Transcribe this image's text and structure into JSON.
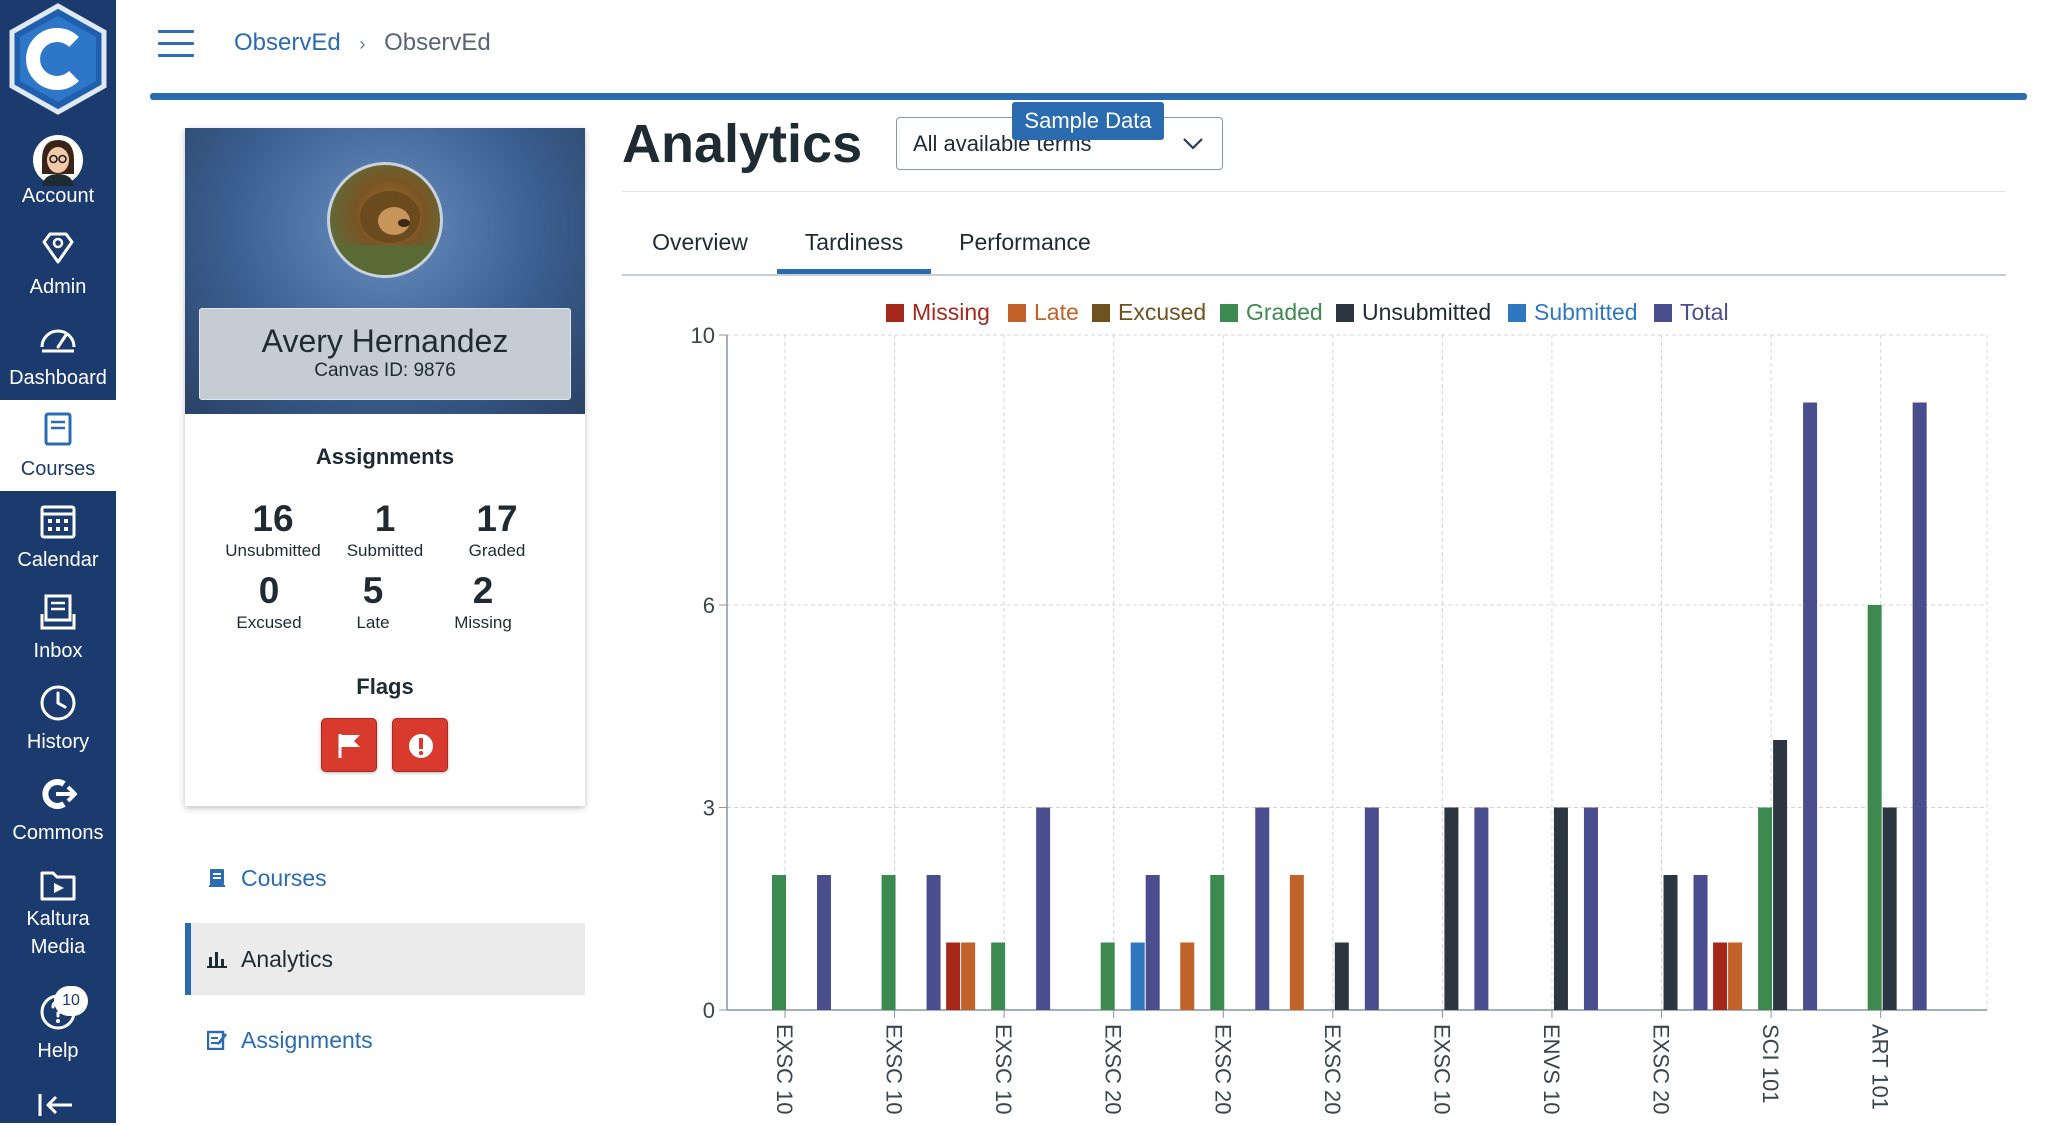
{
  "nav": {
    "items": [
      {
        "key": "account",
        "label": "Account"
      },
      {
        "key": "admin",
        "label": "Admin"
      },
      {
        "key": "dashboard",
        "label": "Dashboard"
      },
      {
        "key": "courses",
        "label": "Courses"
      },
      {
        "key": "calendar",
        "label": "Calendar"
      },
      {
        "key": "inbox",
        "label": "Inbox"
      },
      {
        "key": "history",
        "label": "History"
      },
      {
        "key": "commons",
        "label": "Commons"
      },
      {
        "key": "kaltura",
        "label": "Kaltura Media"
      },
      {
        "key": "help",
        "label": "Help"
      }
    ],
    "help_badge": "10"
  },
  "breadcrumb": {
    "root": "ObservEd",
    "separator": "›",
    "current": "ObservEd"
  },
  "student": {
    "name": "Avery Hernandez",
    "canvas_id": "Canvas ID: 9876",
    "assignments_title": "Assignments",
    "stats": [
      {
        "value": "16",
        "label": "Unsubmitted"
      },
      {
        "value": "1",
        "label": "Submitted"
      },
      {
        "value": "17",
        "label": "Graded"
      },
      {
        "value": "0",
        "label": "Excused"
      },
      {
        "value": "5",
        "label": "Late"
      },
      {
        "value": "2",
        "label": "Missing"
      }
    ],
    "flags_title": "Flags"
  },
  "side_menu": {
    "courses": "Courses",
    "analytics": "Analytics",
    "assignments": "Assignments"
  },
  "main": {
    "title": "Analytics",
    "term_select": "All available terms",
    "sample_badge": "Sample Data",
    "tabs": [
      "Overview",
      "Tardiness",
      "Performance"
    ],
    "active_tab": "Tardiness"
  },
  "colors": {
    "nav_bg": "#1b3b6f",
    "accent": "#2b6cb0",
    "flag_red": "#d93a2e"
  },
  "chart_data": {
    "type": "bar",
    "title": "",
    "xlabel": "",
    "ylabel": "",
    "ylim": [
      0,
      10
    ],
    "yticks": [
      0,
      3,
      6,
      10
    ],
    "grid": true,
    "legend_position": "top",
    "categories": [
      "EXSC 10",
      "EXSC 10",
      "EXSC 10",
      "EXSC 20",
      "EXSC 20",
      "EXSC 20",
      "EXSC 10",
      "ENVS 10",
      "EXSC 20",
      "SCI 101",
      "ART 101"
    ],
    "series": [
      {
        "name": "Missing",
        "color": "#a5281b",
        "values": [
          0,
          0,
          1,
          0,
          0,
          0,
          0,
          0,
          0,
          1,
          0
        ]
      },
      {
        "name": "Late",
        "color": "#c0622a",
        "values": [
          0,
          0,
          1,
          0,
          1,
          2,
          0,
          0,
          0,
          1,
          0
        ]
      },
      {
        "name": "Excused",
        "color": "#6e5320",
        "values": [
          0,
          0,
          0,
          0,
          0,
          0,
          0,
          0,
          0,
          0,
          0
        ]
      },
      {
        "name": "Graded",
        "color": "#3d8a50",
        "values": [
          2,
          2,
          1,
          1,
          2,
          0,
          0,
          0,
          0,
          3,
          6
        ]
      },
      {
        "name": "Unsubmitted",
        "color": "#2c3640",
        "values": [
          0,
          0,
          0,
          0,
          0,
          1,
          3,
          3,
          2,
          4,
          3
        ]
      },
      {
        "name": "Submitted",
        "color": "#2f78bf",
        "values": [
          0,
          0,
          0,
          1,
          0,
          0,
          0,
          0,
          0,
          0,
          0
        ]
      },
      {
        "name": "Total",
        "color": "#4a4e8f",
        "values": [
          2,
          2,
          3,
          2,
          3,
          3,
          3,
          3,
          2,
          9,
          9
        ]
      }
    ]
  }
}
